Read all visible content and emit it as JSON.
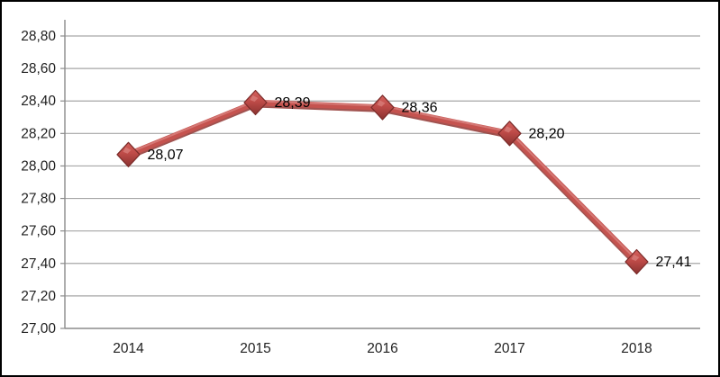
{
  "chart_data": {
    "type": "line",
    "title": "",
    "categories": [
      "2014",
      "2015",
      "2016",
      "2017",
      "2018"
    ],
    "series": [
      {
        "name": "values",
        "values": [
          28.07,
          28.39,
          28.36,
          28.2,
          27.41
        ]
      }
    ],
    "point_labels": [
      "28,07",
      "28,39",
      "28,36",
      "28,20",
      "27,41"
    ],
    "xlabel": "",
    "ylabel": "",
    "y_axis": {
      "min": 27.0,
      "max": 28.9,
      "major_unit": 0.2,
      "tick_values": [
        28.8,
        28.6,
        28.4,
        28.2,
        28.0,
        27.8,
        27.6,
        27.4,
        27.2,
        27.0
      ],
      "tick_labels": [
        "28,80",
        "28,60",
        "28,40",
        "28,20",
        "28,00",
        "27,80",
        "27,60",
        "27,40",
        "27,20",
        "27,00"
      ],
      "decimal_separator": ","
    },
    "grid": true,
    "legend_position": "none",
    "marker": "diamond",
    "colors": {
      "line": "#C5534F",
      "line_shadow": "#97403D",
      "line_highlight": "#D8827E",
      "marker_top": "#D4615D",
      "marker_mid": "#BE4B48",
      "marker_bottom": "#8A3230",
      "marker_stroke": "#7A2B29",
      "gridline": "#A6A6A6",
      "axis": "#8C8C8C",
      "text": "#1F1F1F",
      "label_text": "#000000",
      "frame_border": "#000000",
      "background": "#FFFFFF"
    }
  }
}
